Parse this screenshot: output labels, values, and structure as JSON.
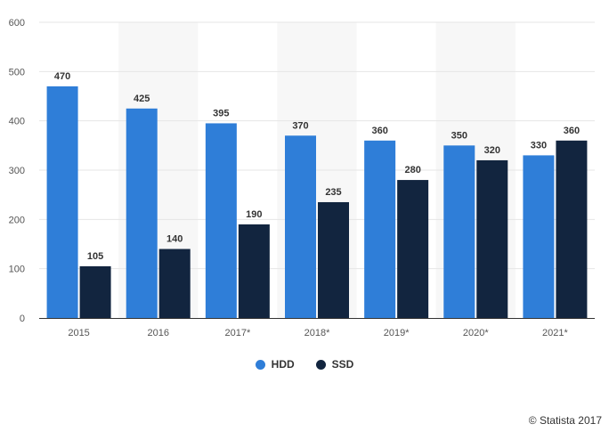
{
  "chart_data": {
    "type": "bar",
    "title": "",
    "xlabel": "",
    "ylabel": "",
    "categories": [
      "2015",
      "2016",
      "2017*",
      "2018*",
      "2019*",
      "2020*",
      "2021*"
    ],
    "series": [
      {
        "name": "HDD",
        "color": "#2f7ed8",
        "values": [
          470,
          425,
          395,
          370,
          360,
          350,
          330
        ]
      },
      {
        "name": "SSD",
        "color": "#12253f",
        "values": [
          105,
          140,
          190,
          235,
          280,
          320,
          360
        ]
      }
    ],
    "ylim": [
      0,
      600
    ],
    "yticks": [
      0,
      100,
      200,
      300,
      400,
      500,
      600
    ],
    "grid": true,
    "legend_position": "bottom-center",
    "alternate_band_color": "#f7f7f7",
    "grid_color": "#e6e6e6"
  },
  "legend": {
    "hdd_label": "HDD",
    "ssd_label": "SSD"
  },
  "credit": "© Statista 2017"
}
